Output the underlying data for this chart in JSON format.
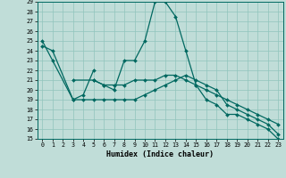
{
  "xlabel": "Humidex (Indice chaleur)",
  "bg_color": "#c0ddd8",
  "line_color": "#006860",
  "grid_color": "#90c4bc",
  "ylim": [
    15,
    29
  ],
  "xlim": [
    -0.5,
    23.5
  ],
  "yticks": [
    15,
    16,
    17,
    18,
    19,
    20,
    21,
    22,
    23,
    24,
    25,
    26,
    27,
    28,
    29
  ],
  "xticks": [
    0,
    1,
    2,
    3,
    4,
    5,
    6,
    7,
    8,
    9,
    10,
    11,
    12,
    13,
    14,
    15,
    16,
    17,
    18,
    19,
    20,
    21,
    22,
    23
  ],
  "line1_x": [
    0,
    1,
    3,
    4,
    5
  ],
  "line1_y": [
    25.0,
    23.0,
    19.0,
    19.5,
    22.0
  ],
  "line2_x": [
    3,
    5,
    6,
    7,
    8,
    9,
    10,
    11,
    12,
    13,
    14,
    15,
    16,
    17,
    18,
    19,
    20,
    21,
    22,
    23
  ],
  "line2_y": [
    21.0,
    21.0,
    20.5,
    20.5,
    20.5,
    21.0,
    21.0,
    21.0,
    21.5,
    21.5,
    21.0,
    20.5,
    20.0,
    19.5,
    19.0,
    18.5,
    18.0,
    17.5,
    17.0,
    16.5
  ],
  "line3_x": [
    0,
    1,
    3,
    4,
    5,
    6,
    7,
    8,
    9,
    10,
    11,
    12,
    13,
    14,
    15,
    16,
    17,
    18,
    19,
    20,
    21,
    22,
    23
  ],
  "line3_y": [
    24.5,
    24.0,
    19.0,
    19.0,
    19.0,
    19.0,
    19.0,
    19.0,
    19.0,
    19.5,
    20.0,
    20.5,
    21.0,
    21.5,
    21.0,
    20.5,
    20.0,
    18.5,
    18.0,
    17.5,
    17.0,
    16.5,
    15.5
  ],
  "line4_x": [
    5,
    6,
    7,
    8,
    9,
    10,
    11,
    12,
    13,
    14,
    15,
    16,
    17,
    18,
    19,
    20,
    21,
    22,
    23
  ],
  "line4_y": [
    21.0,
    20.5,
    20.0,
    23.0,
    23.0,
    25.0,
    29.0,
    29.0,
    27.5,
    24.0,
    20.5,
    19.0,
    18.5,
    17.5,
    17.5,
    17.0,
    16.5,
    16.0,
    15.0
  ]
}
